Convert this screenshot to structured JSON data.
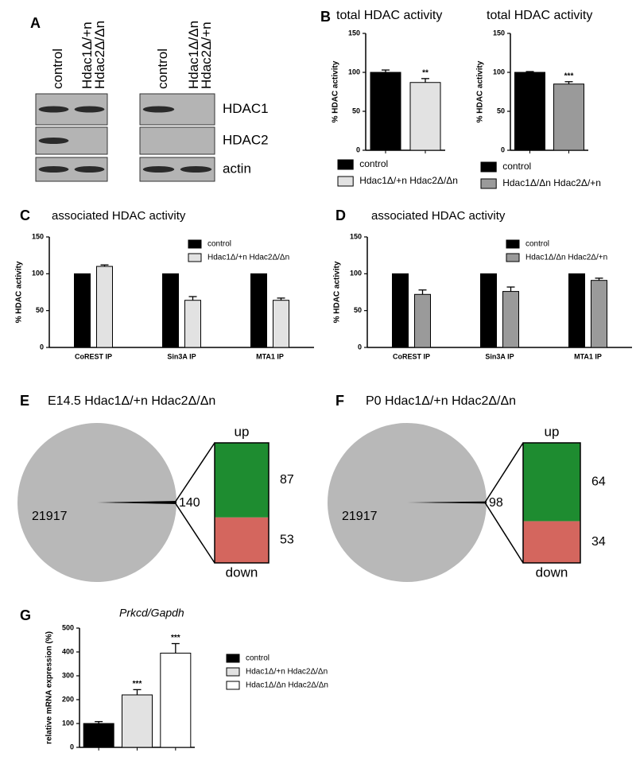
{
  "panel_A": {
    "letter": "A",
    "blots": [
      {
        "lanes": [
          [
            "control"
          ],
          [
            "Hdac1Δ/+n",
            "Hdac2Δ/Δn"
          ]
        ]
      },
      {
        "lanes": [
          [
            "control"
          ],
          [
            "Hdac1Δ/Δn",
            "Hdac2Δ/+n"
          ]
        ]
      }
    ],
    "rows": [
      "HDAC1",
      "HDAC2",
      "actin"
    ]
  },
  "chart_data": [
    {
      "type": "bar",
      "panel": "B",
      "title": "total HDAC activity",
      "y_label": "% HDAC activity",
      "ylim": [
        0,
        150
      ],
      "yticks": [
        0,
        50,
        100,
        150
      ],
      "series": [
        {
          "name": "control",
          "color": "#000000",
          "values": [
            100
          ],
          "errors": [
            3
          ]
        },
        {
          "name": "Hdac1Δ/+n Hdac2Δ/Δn",
          "color": "#e2e2e2",
          "values": [
            87
          ],
          "errors": [
            5
          ],
          "significance": [
            "**"
          ]
        }
      ]
    },
    {
      "type": "bar",
      "title": "total HDAC activity",
      "y_label": "% HDAC activity",
      "ylim": [
        0,
        150
      ],
      "yticks": [
        0,
        50,
        100,
        150
      ],
      "series": [
        {
          "name": "control",
          "color": "#000000",
          "values": [
            100
          ],
          "errors": [
            1
          ]
        },
        {
          "name": "Hdac1Δ/Δn Hdac2Δ/+n",
          "color": "#9a9a9a",
          "values": [
            85
          ],
          "errors": [
            3
          ],
          "significance": [
            "***"
          ]
        }
      ]
    },
    {
      "type": "bar",
      "panel": "C",
      "title": "associated HDAC activity",
      "y_label": "% HDAC activity",
      "ylim": [
        0,
        150
      ],
      "yticks": [
        0,
        50,
        100,
        150
      ],
      "categories": [
        "CoREST IP",
        "Sin3A IP",
        "MTA1 IP"
      ],
      "series": [
        {
          "name": "control",
          "color": "#000000",
          "values": [
            100,
            100,
            100
          ]
        },
        {
          "name": "Hdac1Δ/+n Hdac2Δ/Δn",
          "color": "#e2e2e2",
          "values": [
            110,
            64,
            64
          ],
          "errors": [
            2,
            5,
            3
          ]
        }
      ]
    },
    {
      "type": "bar",
      "panel": "D",
      "title": "associated HDAC activity",
      "y_label": "% HDAC activity",
      "ylim": [
        0,
        150
      ],
      "yticks": [
        0,
        50,
        100,
        150
      ],
      "categories": [
        "CoREST IP",
        "Sin3A IP",
        "MTA1 IP"
      ],
      "series": [
        {
          "name": "control",
          "color": "#000000",
          "values": [
            100,
            100,
            100
          ]
        },
        {
          "name": "Hdac1Δ/Δn Hdac2Δ/+n",
          "color": "#9a9a9a",
          "values": [
            72,
            76,
            91
          ],
          "errors": [
            6,
            6,
            3
          ]
        }
      ]
    },
    {
      "type": "pie",
      "panel": "E",
      "title": "E14.5 Hdac1Δ/+n Hdac2Δ/Δn",
      "values": [
        21917,
        140
      ],
      "colors": [
        "#b8b8b8",
        "#000000"
      ],
      "breakdown": {
        "categories": [
          "up",
          "down"
        ],
        "values": [
          87,
          53
        ],
        "colors": [
          "#1e8c30",
          "#d4665e"
        ]
      }
    },
    {
      "type": "pie",
      "panel": "F",
      "title": "P0 Hdac1Δ/+n Hdac2Δ/Δn",
      "values": [
        21917,
        98
      ],
      "colors": [
        "#b8b8b8",
        "#000000"
      ],
      "breakdown": {
        "categories": [
          "up",
          "down"
        ],
        "values": [
          64,
          34
        ],
        "colors": [
          "#1e8c30",
          "#d4665e"
        ]
      }
    },
    {
      "type": "bar",
      "panel": "G",
      "title": "Prkcd/Gapdh",
      "y_label": "relative mRNA expression (%)",
      "ylim": [
        0,
        500
      ],
      "yticks": [
        0,
        100,
        200,
        300,
        400,
        500
      ],
      "series": [
        {
          "name": "control",
          "color": "#000000",
          "values": [
            100
          ],
          "errors": [
            8
          ]
        },
        {
          "name": "Hdac1Δ/+n Hdac2Δ/Δn",
          "color": "#e2e2e2",
          "values": [
            220
          ],
          "errors": [
            22
          ],
          "significance": [
            "***"
          ]
        },
        {
          "name": "Hdac1Δ/Δn Hdac2Δ/Δn",
          "color": "#ffffff",
          "values": [
            395
          ],
          "errors": [
            40
          ],
          "significance": [
            "***"
          ]
        }
      ]
    }
  ]
}
